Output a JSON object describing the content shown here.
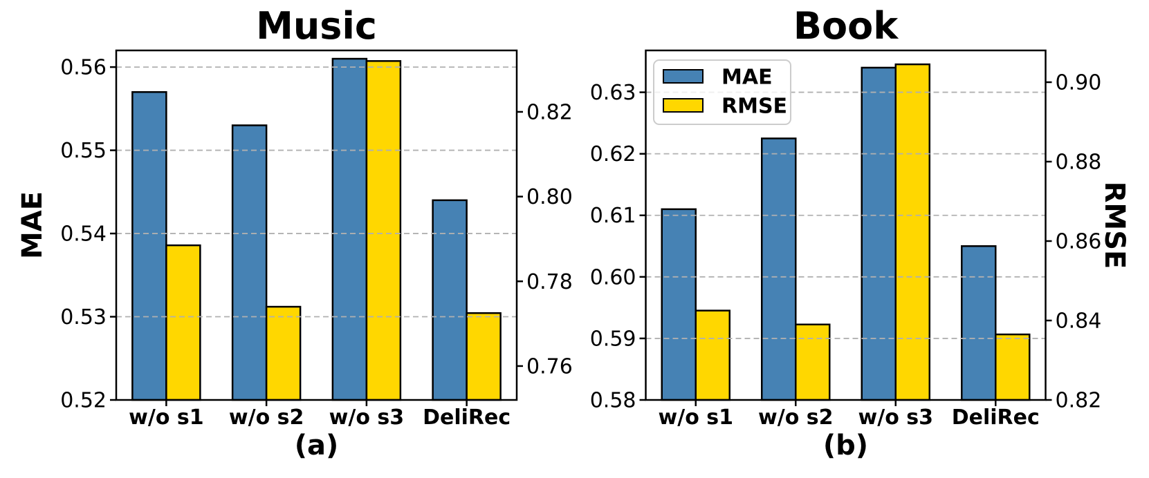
{
  "figure": {
    "background": "#ffffff",
    "bar_edge_color": "#000000",
    "grid_color": "#b0b0b0",
    "accent_blue": "#4682B4",
    "accent_yellow": "#FFD700"
  },
  "chart_data": [
    {
      "type": "bar",
      "title": "Music",
      "sublabel": "(a)",
      "categories": [
        "w/o s1",
        "w/o s2",
        "w/o s3",
        "DeliRec"
      ],
      "series": [
        {
          "name": "MAE",
          "axis": "left",
          "color": "#4682B4",
          "values": [
            0.557,
            0.553,
            0.561,
            0.544
          ]
        },
        {
          "name": "RMSE",
          "axis": "right",
          "color": "#FFD700",
          "values": [
            0.7885,
            0.774,
            0.832,
            0.7725
          ]
        }
      ],
      "left_axis": {
        "label": "MAE",
        "min": 0.52,
        "max": 0.562,
        "ticks": [
          0.52,
          0.53,
          0.54,
          0.55,
          0.56
        ]
      },
      "right_axis": {
        "label": "",
        "min": 0.752,
        "max": 0.8345,
        "ticks": [
          0.76,
          0.78,
          0.8,
          0.82
        ]
      },
      "legend": null,
      "grid": "dashed-horizontal"
    },
    {
      "type": "bar",
      "title": "Book",
      "sublabel": "(b)",
      "categories": [
        "w/o s1",
        "w/o s2",
        "w/o s3",
        "DeliRec"
      ],
      "series": [
        {
          "name": "MAE",
          "axis": "left",
          "color": "#4682B4",
          "values": [
            0.611,
            0.6225,
            0.634,
            0.605
          ]
        },
        {
          "name": "RMSE",
          "axis": "right",
          "color": "#FFD700",
          "values": [
            0.8425,
            0.839,
            0.9045,
            0.8365
          ]
        }
      ],
      "left_axis": {
        "label": "",
        "min": 0.58,
        "max": 0.6368,
        "ticks": [
          0.58,
          0.59,
          0.6,
          0.61,
          0.62,
          0.63
        ]
      },
      "right_axis": {
        "label": "RMSE",
        "min": 0.82,
        "max": 0.908,
        "ticks": [
          0.82,
          0.84,
          0.86,
          0.88,
          0.9
        ]
      },
      "legend": {
        "items": [
          {
            "label": "MAE",
            "color": "#4682B4"
          },
          {
            "label": "RMSE",
            "color": "#FFD700"
          }
        ]
      },
      "grid": "dashed-horizontal"
    }
  ]
}
